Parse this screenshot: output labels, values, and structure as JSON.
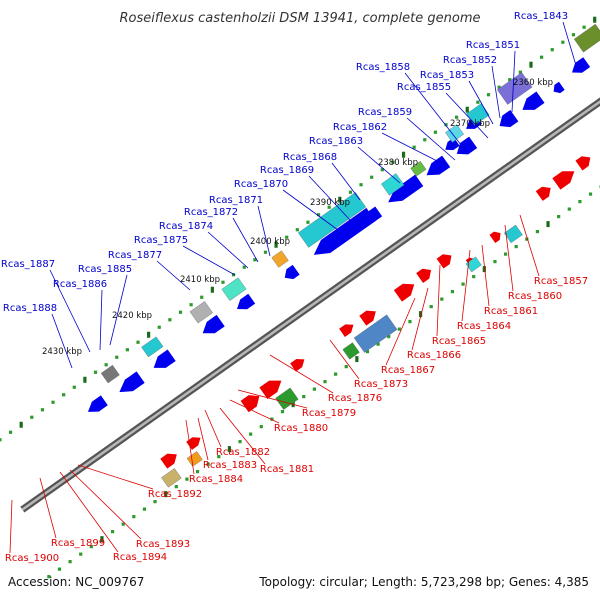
{
  "title": "Roseiflexus castenholzii DSM 13941, complete genome",
  "accession": "Accession: NC_009767",
  "summary": "Topology: circular; Length: 5,723,298 bp; Genes: 4,385",
  "colors": {
    "forward_label": "#0000cc",
    "reverse_label": "#dd0000",
    "forward_gene": "#0000ee",
    "reverse_gene": "#ee0000",
    "backbone": "#808080"
  },
  "kbp_ticks": [
    "2360 kbp",
    "2370 kbp",
    "2380 kbp",
    "2390 kbp",
    "2400 kbp",
    "2410 kbp",
    "2420 kbp",
    "2430 kbp"
  ],
  "forward_genes": [
    "Rcas_1843",
    "Rcas_1851",
    "Rcas_1852",
    "Rcas_1853",
    "Rcas_1855",
    "Rcas_1858",
    "Rcas_1859",
    "Rcas_1862",
    "Rcas_1863",
    "Rcas_1868",
    "Rcas_1869",
    "Rcas_1870",
    "Rcas_1871",
    "Rcas_1872",
    "Rcas_1874",
    "Rcas_1875",
    "Rcas_1877",
    "Rcas_1885",
    "Rcas_1886",
    "Rcas_1887",
    "Rcas_1888"
  ],
  "reverse_genes": [
    "Rcas_1857",
    "Rcas_1860",
    "Rcas_1861",
    "Rcas_1864",
    "Rcas_1865",
    "Rcas_1866",
    "Rcas_1867",
    "Rcas_1873",
    "Rcas_1876",
    "Rcas_1879",
    "Rcas_1880",
    "Rcas_1881",
    "Rcas_1882",
    "Rcas_1883",
    "Rcas_1884",
    "Rcas_1892",
    "Rcas_1893",
    "Rcas_1894",
    "Rcas_1899",
    "Rcas_1900"
  ]
}
